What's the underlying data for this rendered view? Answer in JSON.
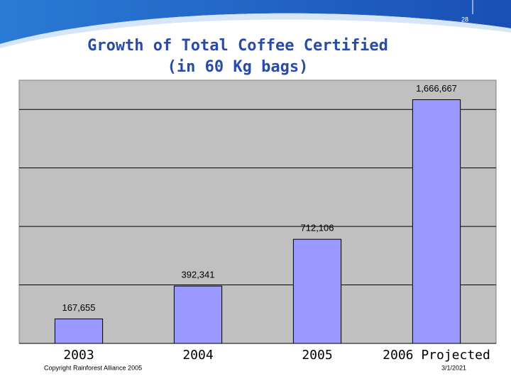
{
  "page_number": "28",
  "footer": {
    "copyright": "Copyright Rainforest Alliance 2005",
    "date": "3/1/2021"
  },
  "chart_data": {
    "type": "bar",
    "title": "Growth of Total Coffee Certified",
    "subtitle": "(in 60 Kg bags)",
    "categories": [
      "2003",
      "2004",
      "2005",
      "2006 Projected"
    ],
    "values": [
      167655,
      392341,
      712106,
      1666667
    ],
    "value_labels": [
      "167,655",
      "392,341",
      "712,106",
      "1,666,667"
    ],
    "color": "#9999ff",
    "ylim": [
      0,
      1800000
    ],
    "yticks": [
      0,
      400000,
      800000,
      1200000,
      1600000
    ],
    "grid": true
  }
}
